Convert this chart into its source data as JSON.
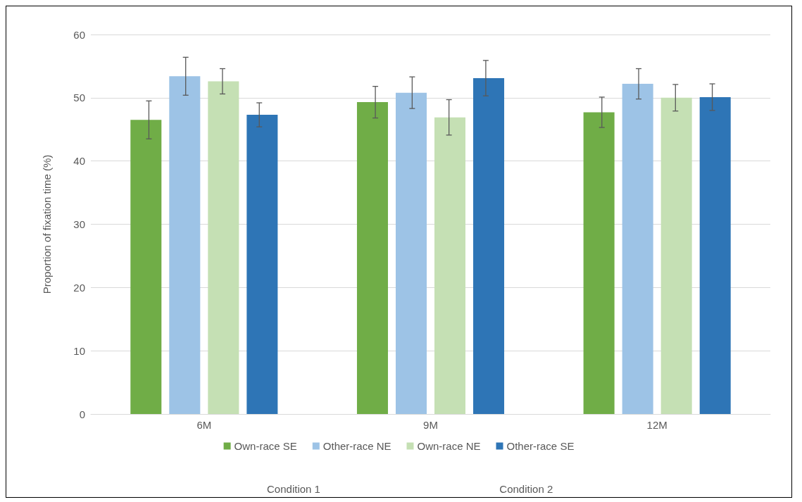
{
  "chart_data": {
    "type": "bar",
    "ylabel": "Proportion of fixation time (%)",
    "categories": [
      "6M",
      "9M",
      "12M"
    ],
    "series": [
      {
        "name": "Own-race SE",
        "color": "#70ad47",
        "values": [
          46.5,
          49.3,
          47.7
        ],
        "errors": [
          3.0,
          2.5,
          2.4
        ]
      },
      {
        "name": "Other-race NE",
        "color": "#9dc3e6",
        "values": [
          53.4,
          50.8,
          52.2
        ],
        "errors": [
          3.0,
          2.5,
          2.4
        ]
      },
      {
        "name": "Own-race NE",
        "color": "#c5e0b4",
        "values": [
          52.6,
          46.9,
          50.0
        ],
        "errors": [
          2.0,
          2.8,
          2.1
        ]
      },
      {
        "name": "Other-race SE",
        "color": "#2e75b6",
        "values": [
          47.3,
          53.1,
          50.1
        ],
        "errors": [
          1.9,
          2.8,
          2.1
        ]
      }
    ],
    "ylim": [
      0,
      60
    ],
    "yticks": [
      0,
      10,
      20,
      30,
      40,
      50,
      60
    ],
    "grid": "y",
    "legend": "bottom",
    "annotations": [
      "Condition 1",
      "Condition 2"
    ]
  }
}
